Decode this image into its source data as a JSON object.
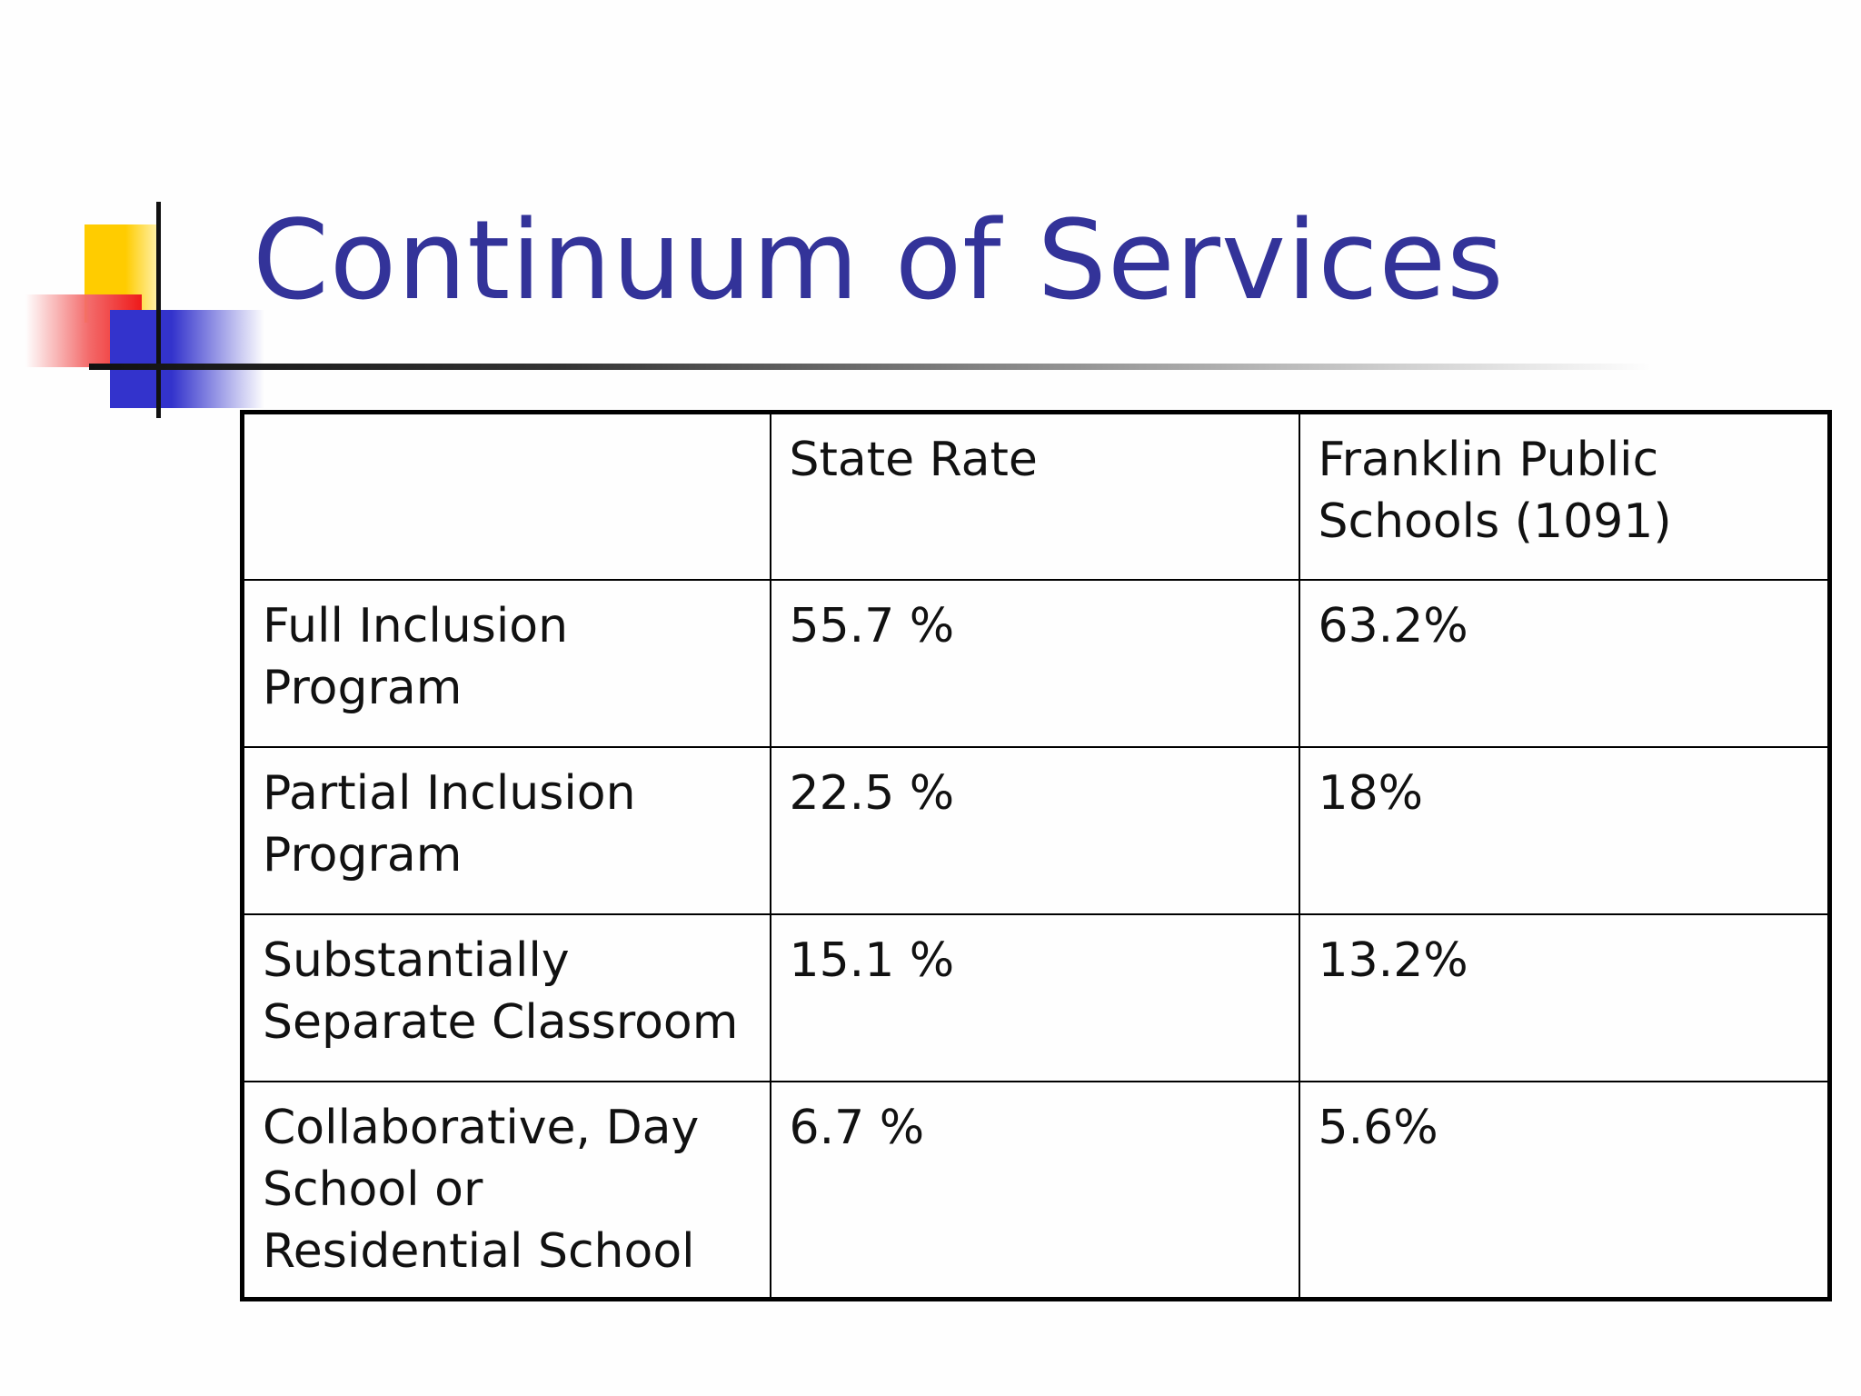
{
  "slide": {
    "title": "Continuum of Services",
    "accent_colors": {
      "title": "#333399",
      "yellow": "#ffcc00",
      "red": "#ee1a1a",
      "blue": "#3333cc"
    }
  },
  "table": {
    "headers": [
      "",
      "State Rate",
      "Franklin Public Schools (1091)"
    ],
    "rows": [
      {
        "category": "Full Inclusion Program",
        "state_rate": "55.7 %",
        "franklin": "63.2%"
      },
      {
        "category": "Partial Inclusion Program",
        "state_rate": "22.5 %",
        "franklin": "18%"
      },
      {
        "category": "Substantially Separate Classroom",
        "state_rate": "15.1 %",
        "franklin": "13.2%"
      },
      {
        "category": "Collaborative, Day School or Residential School",
        "state_rate": "6.7 %",
        "franklin": "5.6%"
      }
    ]
  }
}
